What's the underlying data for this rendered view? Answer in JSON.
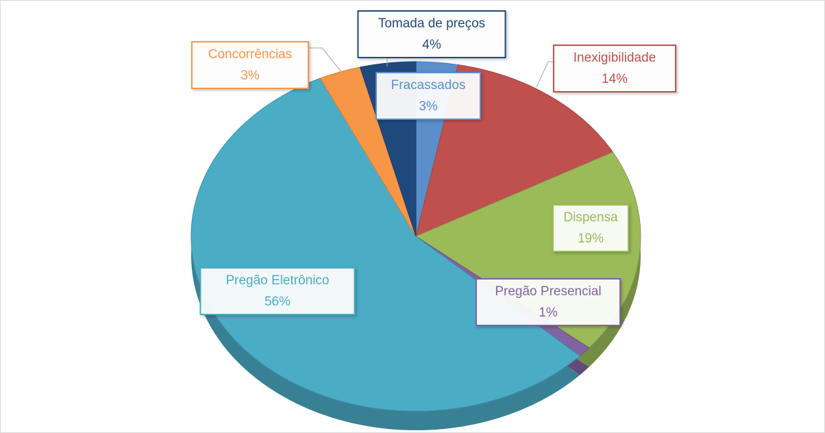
{
  "chart_data": {
    "type": "pie",
    "categories": [
      "Fracassados",
      "Inexigibilidade",
      "Dispensa",
      "Pregão Presencial",
      "Pregão Eletrônico",
      "Concorrências",
      "Tomada de preços"
    ],
    "values": [
      3,
      14,
      19,
      1,
      56,
      3,
      4
    ],
    "value_labels": [
      "3%",
      "14%",
      "19%",
      "1%",
      "56%",
      "3%",
      "4%"
    ],
    "colors": [
      "#5a8fcc",
      "#c0504d",
      "#9bbb59",
      "#8064a2",
      "#4bacc6",
      "#f79646",
      "#1f497d"
    ]
  }
}
